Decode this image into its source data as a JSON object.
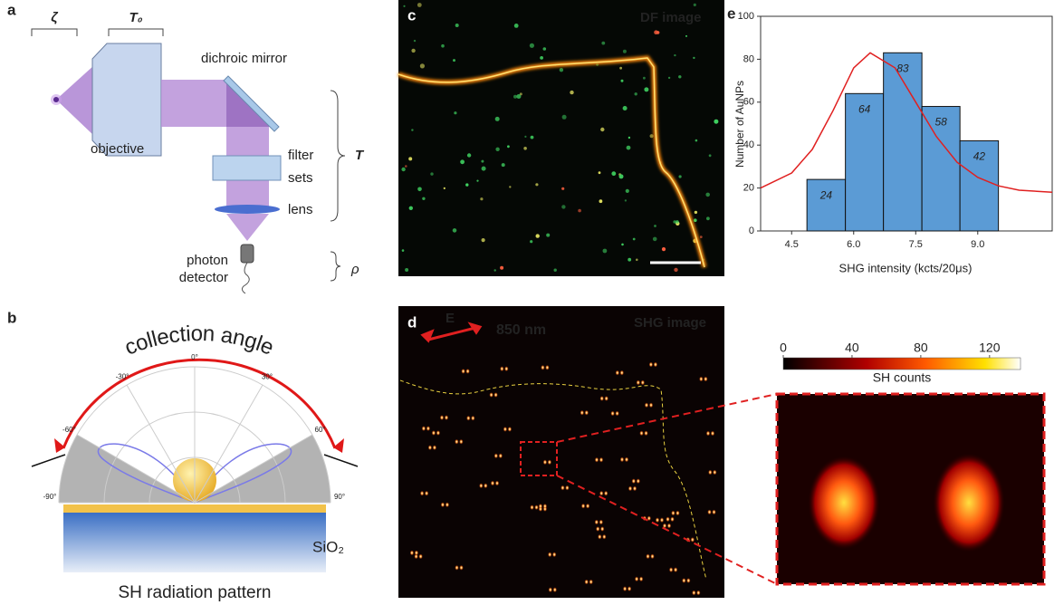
{
  "panel_labels": [
    "a",
    "b",
    "c",
    "d",
    "e"
  ],
  "schematic": {
    "zeta": "ζ",
    "t0": "T₀",
    "t": "T",
    "rho": "ρ",
    "dichroic_mirror": "dichroic mirror",
    "objective": "objective",
    "filter_sets": [
      "filter",
      "sets"
    ],
    "lens": "lens",
    "photon_detector": [
      "photon",
      "detector"
    ]
  },
  "radiation": {
    "title": "collection angle",
    "substrate": "SiO₂",
    "caption": "SH radiation pattern",
    "angle_ticks": [
      {
        "value": -90,
        "label": "-90°"
      },
      {
        "value": -60,
        "label": "-60°"
      },
      {
        "value": -30,
        "label": "-30°"
      },
      {
        "value": 0,
        "label": "0°"
      },
      {
        "value": 30,
        "label": "30°"
      },
      {
        "value": 60,
        "label": "60°"
      },
      {
        "value": 90,
        "label": "90°"
      }
    ]
  },
  "images": {
    "df_title": "DF image",
    "shg_title": "SHG image",
    "field": "E",
    "wavelength": "850 nm"
  },
  "colorbar": {
    "lim": [
      0,
      138
    ],
    "ticks": [
      0,
      40,
      80,
      120
    ],
    "label": "SH counts"
  },
  "chart_data": {
    "type": "histogram",
    "bins": [
      4.87,
      5.8,
      6.72,
      7.65,
      8.57,
      9.5
    ],
    "values": [
      24,
      64,
      83,
      58,
      42
    ],
    "color": "#5b9bd5",
    "fit_curve": {
      "color": "#e02020",
      "x": [
        3.75,
        4.5,
        5.0,
        5.5,
        6.0,
        6.4,
        7.0,
        7.5,
        8.0,
        8.5,
        9.0,
        9.5,
        10.0,
        10.8
      ],
      "values": [
        20,
        27,
        38,
        56,
        76,
        83,
        76,
        60,
        44,
        32,
        25,
        21,
        19,
        18
      ]
    },
    "xlim": [
      3.75,
      10.8
    ],
    "ylim": [
      0,
      100
    ],
    "xticks": [
      4.5,
      {
        "value": 6,
        "label": "6.0"
      },
      7.5,
      {
        "value": 9,
        "label": "9.0"
      }
    ],
    "yticks": [
      0,
      20,
      40,
      60,
      80,
      100
    ],
    "x_label": "SHG intensity  (kcts/20μs)",
    "y_label": "Number of AuNPs"
  }
}
